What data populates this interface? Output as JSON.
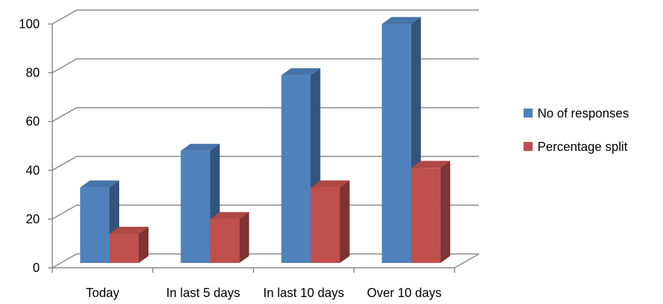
{
  "chart_data": {
    "type": "bar",
    "categories": [
      "Today",
      "In last 5 days",
      "In last 10 days",
      "Over 10 days"
    ],
    "series": [
      {
        "name": "No of responses",
        "values": [
          31,
          46,
          77,
          98
        ],
        "color": "#4F81BD"
      },
      {
        "name": "Percentage split",
        "values": [
          12,
          18,
          31,
          39
        ],
        "color": "#C0504D"
      }
    ],
    "y_ticks": [
      "0",
      "20",
      "40",
      "60",
      "80",
      "100"
    ],
    "ylim": [
      0,
      100
    ],
    "grid": true,
    "legend_position": "right",
    "style": "3d-clustered-column"
  }
}
